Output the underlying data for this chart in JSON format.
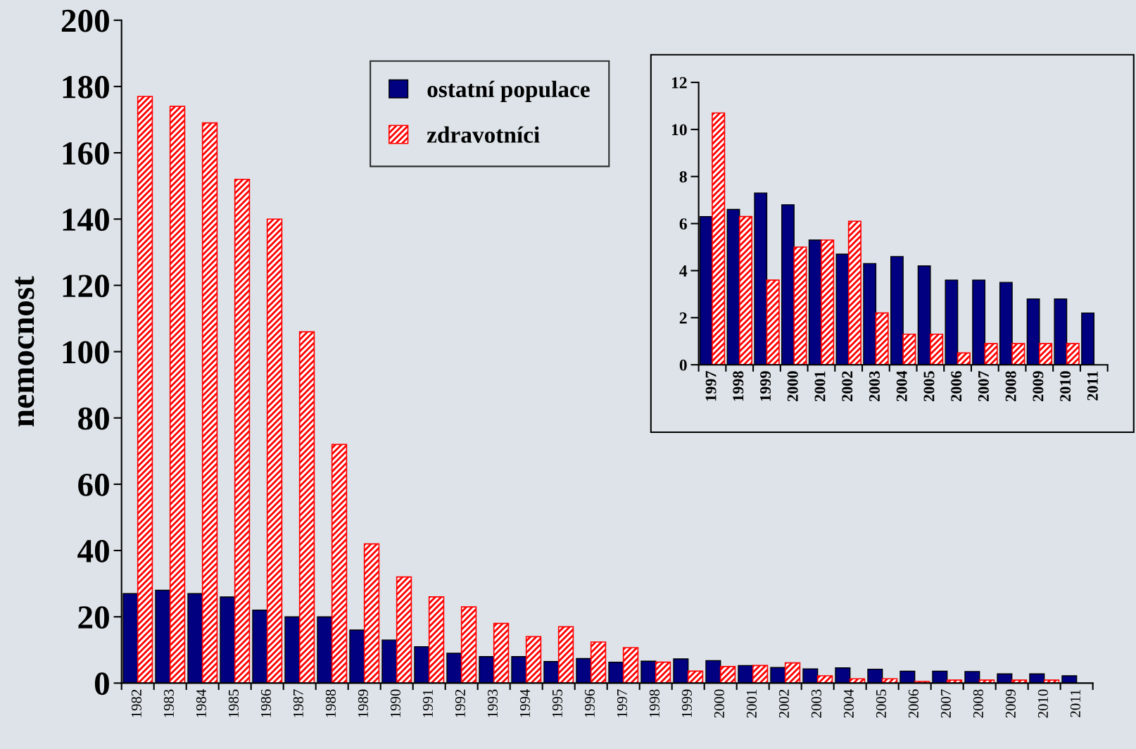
{
  "chart_data": [
    {
      "type": "bar",
      "ylabel": "nemocnost",
      "categories": [
        "1982",
        "1983",
        "1984",
        "1985",
        "1986",
        "1987",
        "1988",
        "1989",
        "1990",
        "1991",
        "1992",
        "1993",
        "1994",
        "1995",
        "1996",
        "1997",
        "1998",
        "1999",
        "2000",
        "2001",
        "2002",
        "2003",
        "2004",
        "2005",
        "2006",
        "2007",
        "2008",
        "2009",
        "2010",
        "2011"
      ],
      "series": [
        {
          "name": "ostatní populace",
          "color": "#000080",
          "values": [
            27,
            28,
            27,
            26,
            22,
            20,
            20,
            16,
            13,
            11,
            9,
            8,
            8,
            6.5,
            7.4,
            6.3,
            6.6,
            7.3,
            6.8,
            5.3,
            4.7,
            4.3,
            4.6,
            4.2,
            3.6,
            3.6,
            3.5,
            2.8,
            2.8,
            2.2
          ]
        },
        {
          "name": "zdravotníci",
          "color": "#ff0000",
          "values": [
            177,
            174,
            169,
            152,
            140,
            106,
            72,
            42,
            32,
            26,
            23,
            18,
            14,
            17,
            12.4,
            10.7,
            6.3,
            3.6,
            5,
            5.3,
            6.1,
            2.2,
            1.3,
            1.3,
            0.5,
            0.9,
            0.9,
            0.9,
            0.9,
            null
          ]
        }
      ],
      "ylim": [
        0,
        200
      ],
      "yticks": [
        0,
        20,
        40,
        60,
        80,
        100,
        120,
        140,
        160,
        180,
        200
      ],
      "grid": false,
      "legend": "top"
    },
    {
      "type": "bar",
      "categories": [
        "1997",
        "1998",
        "1999",
        "2000",
        "2001",
        "2002",
        "2003",
        "2004",
        "2005",
        "2006",
        "2007",
        "2008",
        "2009",
        "2010",
        "2011"
      ],
      "series": [
        {
          "color": "#000080",
          "values": [
            6.3,
            6.6,
            7.3,
            6.8,
            5.3,
            4.7,
            4.3,
            4.6,
            4.2,
            3.6,
            3.6,
            3.5,
            2.8,
            2.8,
            2.2
          ]
        },
        {
          "color": "#ff0000",
          "values": [
            10.7,
            6.3,
            3.6,
            5,
            5.3,
            6.1,
            2.2,
            1.3,
            1.3,
            0.5,
            0.9,
            0.9,
            0.9,
            0.9,
            null
          ]
        }
      ],
      "ylim": [
        0,
        12
      ],
      "yticks": [
        0,
        2,
        4,
        6,
        8,
        10,
        12
      ],
      "grid": false,
      "legend": false
    }
  ]
}
